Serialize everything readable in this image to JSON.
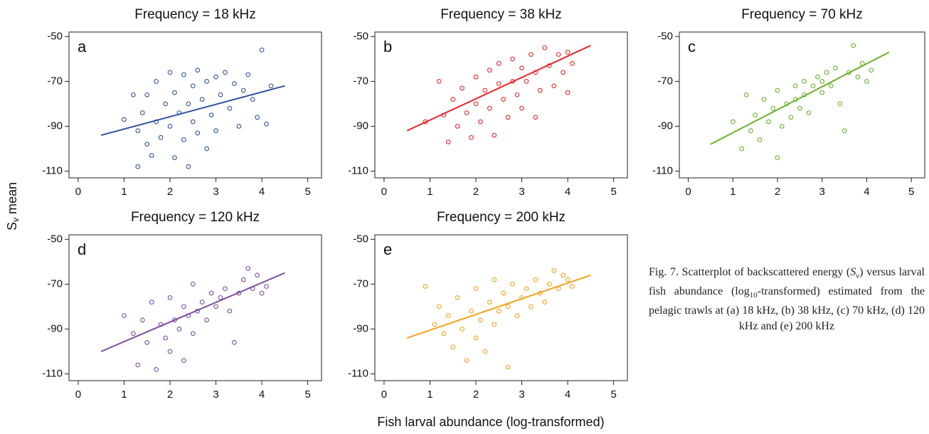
{
  "chart_data": [
    {
      "type": "scatter",
      "title": "Frequency = 18 kHz",
      "panel_label": "a",
      "color": "#3050a0",
      "x": [
        1.0,
        1.2,
        1.3,
        1.3,
        1.4,
        1.5,
        1.5,
        1.6,
        1.7,
        1.7,
        1.8,
        1.9,
        2.0,
        2.0,
        2.1,
        2.1,
        2.2,
        2.3,
        2.3,
        2.4,
        2.4,
        2.5,
        2.5,
        2.6,
        2.6,
        2.7,
        2.8,
        2.8,
        2.9,
        3.0,
        3.0,
        3.1,
        3.2,
        3.3,
        3.4,
        3.5,
        3.6,
        3.7,
        3.8,
        3.9,
        4.0,
        4.1,
        4.2
      ],
      "y": [
        -87,
        -76,
        -92,
        -108,
        -84,
        -76,
        -98,
        -103,
        -88,
        -70,
        -95,
        -80,
        -66,
        -90,
        -104,
        -75,
        -84,
        -67,
        -96,
        -80,
        -108,
        -72,
        -88,
        -65,
        -93,
        -78,
        -70,
        -100,
        -85,
        -68,
        -92,
        -76,
        -66,
        -82,
        -71,
        -90,
        -74,
        -67,
        -78,
        -86,
        -56,
        -89,
        -72
      ],
      "fit": {
        "x": [
          0.5,
          4.5
        ],
        "y": [
          -94,
          -72
        ]
      },
      "xlim": [
        -0.2,
        5.3
      ],
      "ylim": [
        -113,
        -48
      ],
      "xticks": [
        0,
        1,
        2,
        3,
        4,
        5
      ],
      "yticks": [
        -50,
        -70,
        -90,
        -110
      ]
    },
    {
      "type": "scatter",
      "title": "Frequency = 38 kHz",
      "panel_label": "b",
      "color": "#e8262a",
      "x": [
        0.9,
        1.2,
        1.3,
        1.4,
        1.5,
        1.6,
        1.7,
        1.8,
        1.9,
        2.0,
        2.0,
        2.1,
        2.2,
        2.3,
        2.3,
        2.4,
        2.5,
        2.5,
        2.6,
        2.7,
        2.8,
        2.8,
        2.9,
        3.0,
        3.0,
        3.1,
        3.2,
        3.3,
        3.3,
        3.4,
        3.5,
        3.6,
        3.7,
        3.8,
        3.9,
        4.0,
        4.0,
        4.1
      ],
      "y": [
        -88,
        -70,
        -85,
        -97,
        -78,
        -90,
        -73,
        -84,
        -95,
        -68,
        -80,
        -88,
        -74,
        -65,
        -82,
        -94,
        -71,
        -62,
        -78,
        -86,
        -60,
        -70,
        -76,
        -64,
        -82,
        -70,
        -58,
        -66,
        -86,
        -74,
        -55,
        -63,
        -72,
        -58,
        -66,
        -57,
        -75,
        -62
      ],
      "fit": {
        "x": [
          0.5,
          4.5
        ],
        "y": [
          -92,
          -54
        ]
      },
      "xlim": [
        -0.2,
        5.3
      ],
      "ylim": [
        -113,
        -48
      ],
      "xticks": [
        0,
        1,
        2,
        3,
        4,
        5
      ],
      "yticks": [
        -50,
        -70,
        -90,
        -110
      ]
    },
    {
      "type": "scatter",
      "title": "Frequency = 70 kHz",
      "panel_label": "c",
      "color": "#6cb02c",
      "x": [
        1.0,
        1.2,
        1.3,
        1.4,
        1.5,
        1.6,
        1.7,
        1.8,
        1.9,
        2.0,
        2.0,
        2.1,
        2.2,
        2.3,
        2.4,
        2.4,
        2.5,
        2.6,
        2.6,
        2.7,
        2.8,
        2.9,
        3.0,
        3.0,
        3.1,
        3.2,
        3.3,
        3.4,
        3.5,
        3.6,
        3.7,
        3.8,
        3.9,
        4.0,
        4.1
      ],
      "y": [
        -88,
        -100,
        -76,
        -92,
        -85,
        -96,
        -78,
        -88,
        -82,
        -104,
        -74,
        -90,
        -80,
        -86,
        -72,
        -78,
        -82,
        -70,
        -76,
        -84,
        -72,
        -68,
        -75,
        -70,
        -66,
        -72,
        -64,
        -80,
        -92,
        -66,
        -54,
        -68,
        -62,
        -70,
        -65
      ],
      "fit": {
        "x": [
          0.5,
          4.5
        ],
        "y": [
          -98,
          -57
        ]
      },
      "xlim": [
        -0.2,
        5.3
      ],
      "ylim": [
        -113,
        -48
      ],
      "xticks": [
        0,
        1,
        2,
        3,
        4,
        5
      ],
      "yticks": [
        -50,
        -70,
        -90,
        -110
      ]
    },
    {
      "type": "scatter",
      "title": "Frequency = 120 kHz",
      "panel_label": "d",
      "color": "#7d4ba0",
      "x": [
        1.0,
        1.2,
        1.3,
        1.4,
        1.5,
        1.6,
        1.7,
        1.8,
        1.9,
        2.0,
        2.0,
        2.1,
        2.2,
        2.3,
        2.3,
        2.4,
        2.5,
        2.5,
        2.6,
        2.7,
        2.8,
        2.9,
        3.0,
        3.1,
        3.2,
        3.3,
        3.4,
        3.5,
        3.6,
        3.7,
        3.8,
        3.9,
        4.0,
        4.1
      ],
      "y": [
        -84,
        -92,
        -106,
        -86,
        -96,
        -78,
        -108,
        -88,
        -94,
        -76,
        -100,
        -86,
        -90,
        -80,
        -104,
        -84,
        -70,
        -92,
        -82,
        -78,
        -86,
        -74,
        -80,
        -76,
        -72,
        -82,
        -96,
        -74,
        -68,
        -63,
        -72,
        -66,
        -74,
        -71
      ],
      "fit": {
        "x": [
          0.5,
          4.5
        ],
        "y": [
          -100,
          -65
        ]
      },
      "xlim": [
        -0.2,
        5.3
      ],
      "ylim": [
        -113,
        -48
      ],
      "xticks": [
        0,
        1,
        2,
        3,
        4,
        5
      ],
      "yticks": [
        -50,
        -70,
        -90,
        -110
      ]
    },
    {
      "type": "scatter",
      "title": "Frequency = 200 kHz",
      "panel_label": "e",
      "color": "#f4a11a",
      "x": [
        0.9,
        1.1,
        1.2,
        1.3,
        1.4,
        1.5,
        1.6,
        1.7,
        1.8,
        1.9,
        2.0,
        2.0,
        2.1,
        2.2,
        2.3,
        2.4,
        2.4,
        2.5,
        2.6,
        2.7,
        2.7,
        2.8,
        2.9,
        3.0,
        3.1,
        3.2,
        3.3,
        3.4,
        3.5,
        3.6,
        3.7,
        3.8,
        3.9,
        4.0,
        4.1
      ],
      "y": [
        -71,
        -88,
        -80,
        -92,
        -84,
        -98,
        -76,
        -90,
        -104,
        -82,
        -72,
        -94,
        -86,
        -100,
        -78,
        -68,
        -88,
        -82,
        -74,
        -107,
        -80,
        -70,
        -84,
        -76,
        -72,
        -80,
        -68,
        -74,
        -78,
        -70,
        -64,
        -72,
        -66,
        -68,
        -71
      ],
      "fit": {
        "x": [
          0.5,
          4.5
        ],
        "y": [
          -94,
          -66
        ]
      },
      "xlim": [
        -0.2,
        5.3
      ],
      "ylim": [
        -113,
        -48
      ],
      "xticks": [
        0,
        1,
        2,
        3,
        4,
        5
      ],
      "yticks": [
        -50,
        -70,
        -90,
        -110
      ]
    }
  ],
  "x_label": "Fish larval abundance (log-transformed)",
  "y_label": {
    "main": "S",
    "sub": "v",
    "rest": " mean"
  },
  "caption": {
    "p1": "Fig. 7. Scatterplot of backscattered energy (",
    "italic": "S",
    "sub1": "v",
    "p2": ") versus larval fish abundance (log",
    "sub2": "10",
    "p3": "-transformed) estimated from the pelagic trawls at (a) 18 kHz, (b) 38 kHz, (c) 70 kHz, (d) 120 kHz and (e) 200 kHz"
  }
}
